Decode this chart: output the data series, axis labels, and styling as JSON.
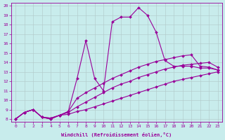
{
  "xlabel": "Windchill (Refroidissement éolien,°C)",
  "ylabel": "",
  "bg_color": "#c8ecec",
  "line_color": "#990099",
  "xlim": [
    -0.5,
    23.5
  ],
  "ylim": [
    7.7,
    20.3
  ],
  "xticks": [
    0,
    1,
    2,
    3,
    4,
    5,
    6,
    7,
    8,
    9,
    10,
    11,
    12,
    13,
    14,
    15,
    16,
    17,
    18,
    19,
    20,
    21,
    22,
    23
  ],
  "yticks": [
    8,
    9,
    10,
    11,
    12,
    13,
    14,
    15,
    16,
    17,
    18,
    19,
    20
  ],
  "lines": [
    {
      "x": [
        0,
        1,
        2,
        3,
        4,
        5,
        6,
        7,
        8,
        9,
        10,
        11,
        12,
        13,
        14,
        15,
        16,
        17,
        18,
        19,
        20,
        21,
        22,
        23
      ],
      "y": [
        8.0,
        8.7,
        9.0,
        8.2,
        8.0,
        8.4,
        8.5,
        8.8,
        9.0,
        9.3,
        9.6,
        9.9,
        10.2,
        10.5,
        10.8,
        11.1,
        11.4,
        11.7,
        12.0,
        12.2,
        12.4,
        12.6,
        12.8,
        13.0
      ]
    },
    {
      "x": [
        0,
        1,
        2,
        3,
        4,
        5,
        6,
        7,
        8,
        9,
        10,
        11,
        12,
        13,
        14,
        15,
        16,
        17,
        18,
        19,
        20,
        21,
        22,
        23
      ],
      "y": [
        8.0,
        8.7,
        9.0,
        8.2,
        8.0,
        8.4,
        8.7,
        9.3,
        9.8,
        10.3,
        10.8,
        11.3,
        11.7,
        12.0,
        12.4,
        12.7,
        13.0,
        13.3,
        13.5,
        13.7,
        13.8,
        13.9,
        14.0,
        13.5
      ]
    },
    {
      "x": [
        0,
        1,
        2,
        3,
        4,
        5,
        6,
        7,
        8,
        9,
        10,
        11,
        12,
        13,
        14,
        15,
        16,
        17,
        18,
        19,
        20,
        21,
        22,
        23
      ],
      "y": [
        8.0,
        8.7,
        9.0,
        8.2,
        8.1,
        8.4,
        8.8,
        10.2,
        10.8,
        11.3,
        11.8,
        12.3,
        12.7,
        13.1,
        13.5,
        13.8,
        14.1,
        14.3,
        14.5,
        14.7,
        14.8,
        13.6,
        13.5,
        13.2
      ]
    },
    {
      "x": [
        0,
        1,
        2,
        3,
        4,
        5,
        6,
        7,
        8,
        9,
        10,
        11,
        12,
        13,
        14,
        15,
        16,
        17,
        18,
        19,
        20,
        21,
        22,
        23
      ],
      "y": [
        8.0,
        8.7,
        9.0,
        8.2,
        8.1,
        8.4,
        8.8,
        12.3,
        16.3,
        12.3,
        11.0,
        18.3,
        18.8,
        18.8,
        19.8,
        19.0,
        17.2,
        14.2,
        13.6,
        13.6,
        13.6,
        13.4,
        13.4,
        13.2
      ]
    }
  ]
}
